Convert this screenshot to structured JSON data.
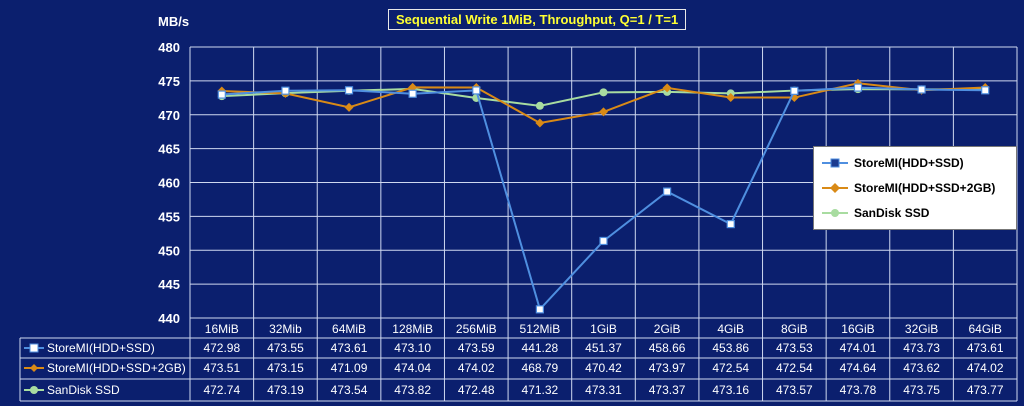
{
  "chart_data": {
    "type": "line",
    "title": "Sequential Write 1MiB, Throughput, Q=1 / T=1",
    "ylabel": "MB/s",
    "xlabel": "",
    "ylim": [
      440,
      480
    ],
    "yticks": [
      440,
      445,
      450,
      455,
      460,
      465,
      470,
      475,
      480
    ],
    "grid": true,
    "legend_position": "right",
    "categories": [
      "16MiB",
      "32Mib",
      "64MiB",
      "128MiB",
      "256MiB",
      "512MiB",
      "1GiB",
      "2GiB",
      "4GiB",
      "8GiB",
      "16GiB",
      "32GiB",
      "64GiB"
    ],
    "series": [
      {
        "name": "StoreMI(HDD+SSD)",
        "color": "#4f8fe0",
        "marker": "square",
        "values": [
          472.98,
          473.55,
          473.61,
          473.1,
          473.59,
          441.28,
          451.37,
          458.66,
          453.86,
          473.53,
          474.01,
          473.73,
          473.61
        ],
        "values_text": [
          "472.98",
          "473.55",
          "473.61",
          "473.10",
          "473.59",
          "441.28",
          "451.37",
          "458.66",
          "453.86",
          "473.53",
          "474.01",
          "473.73",
          "473.61"
        ]
      },
      {
        "name": "StoreMI(HDD+SSD+2GB)",
        "color": "#d98a16",
        "marker": "diamond",
        "values": [
          473.51,
          473.15,
          471.09,
          474.04,
          474.02,
          468.79,
          470.42,
          473.97,
          472.54,
          472.54,
          474.64,
          473.62,
          474.02
        ],
        "values_text": [
          "473.51",
          "473.15",
          "471.09",
          "474.04",
          "474.02",
          "468.79",
          "470.42",
          "473.97",
          "472.54",
          "472.54",
          "474.64",
          "473.62",
          "474.02"
        ]
      },
      {
        "name": "SanDisk SSD",
        "color": "#a8dca0",
        "marker": "circle",
        "values": [
          472.74,
          473.19,
          473.54,
          473.82,
          472.48,
          471.32,
          473.31,
          473.37,
          473.16,
          473.57,
          473.78,
          473.75,
          473.77
        ],
        "values_text": [
          "472.74",
          "473.19",
          "473.54",
          "473.82",
          "472.48",
          "471.32",
          "473.31",
          "473.37",
          "473.16",
          "473.57",
          "473.78",
          "473.75",
          "473.77"
        ]
      }
    ]
  }
}
